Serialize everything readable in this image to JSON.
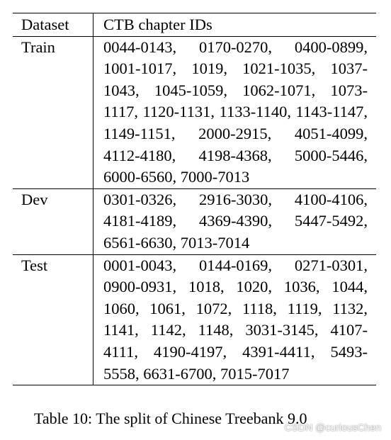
{
  "table": {
    "headers": [
      "Dataset",
      "CTB chapter IDs"
    ],
    "rows": [
      {
        "dataset": "Train",
        "ids": "0044-0143, 0170-0270, 0400-0899, 1001-1017, 1019, 1021-1035, 1037-1043, 1045-1059, 1062-1071, 1073-1117, 1120-1131, 1133-1140, 1143-1147, 1149-1151, 2000-2915, 4051-4099, 4112-4180, 4198-4368, 5000-5446, 6000-6560, 7000-7013"
      },
      {
        "dataset": "Dev",
        "ids": "0301-0326, 2916-3030, 4100-4106, 4181-4189, 4369-4390, 5447-5492, 6561-6630, 7013-7014"
      },
      {
        "dataset": "Test",
        "ids": "0001-0043, 0144-0169, 0271-0301, 0900-0931, 1018, 1020, 1036, 1044, 1060, 1061, 1072, 1118, 1119, 1132, 1141, 1142, 1148, 3031-3145, 4107-4111, 4190-4197, 4391-4411, 5493-5558, 6631-6700, 7015-7017"
      }
    ]
  },
  "caption": "Table 10: The split of Chinese Treebank 9.0",
  "watermark": "CSDN @curiousChen"
}
